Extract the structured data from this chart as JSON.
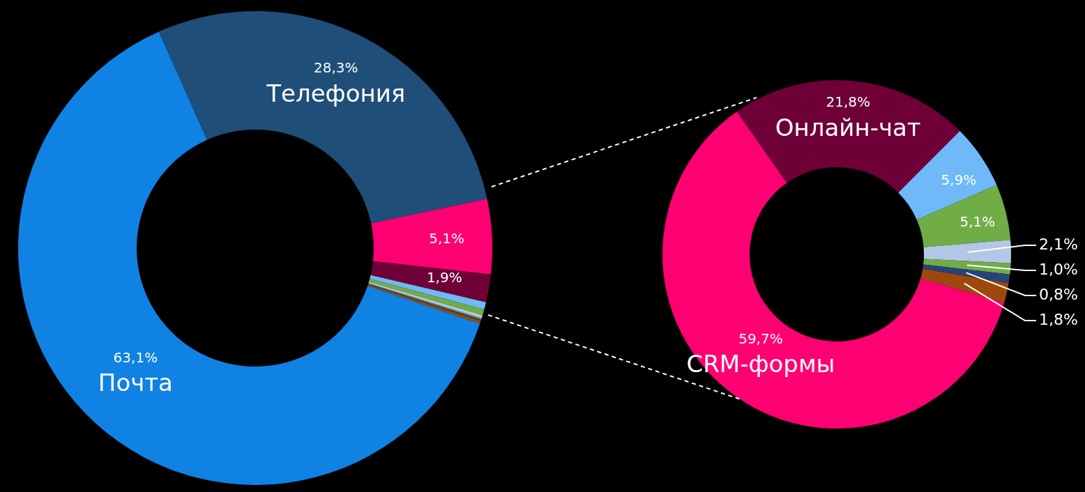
{
  "chart_data": [
    {
      "type": "donut",
      "categories": [
        "Телефония",
        null,
        null,
        null,
        null,
        null,
        null,
        null,
        null,
        "Почта"
      ],
      "values": [
        28.3,
        5.1,
        1.9,
        0.5,
        0.4,
        0.2,
        0.1,
        0.1,
        0.2,
        63.1
      ],
      "colors": [
        "#1f4e79",
        "#ff0073",
        "#6e0037",
        "#6fb9f9",
        "#70ad47",
        "#b4c7e7",
        "#70ad47",
        "#264478",
        "#9e480e",
        "#0f82e4"
      ],
      "value_labels": [
        "28,3%",
        "5,1%",
        "1,9%",
        null,
        null,
        null,
        null,
        null,
        null,
        "63,1%"
      ]
    },
    {
      "type": "donut",
      "categories": [
        "Онлайн-чат",
        null,
        null,
        null,
        null,
        null,
        null,
        "CRM-формы"
      ],
      "values": [
        21.8,
        5.9,
        5.1,
        2.1,
        1.0,
        0.8,
        1.8,
        59.7
      ],
      "colors": [
        "#6e0037",
        "#6fb9f9",
        "#70ad47",
        "#b4c7e7",
        "#70ad47",
        "#264478",
        "#9e480e",
        "#ff0073"
      ],
      "value_labels": [
        "21,8%",
        "5,9%",
        "5,1%",
        "2,1%",
        "1,0%",
        "0,8%",
        "1,8%",
        "59,7%"
      ]
    }
  ]
}
